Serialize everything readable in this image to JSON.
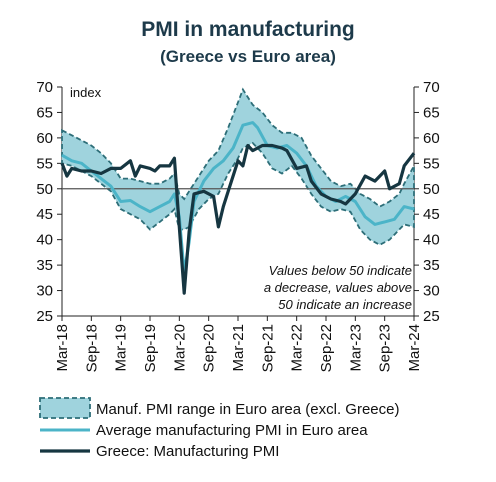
{
  "chart_data": {
    "type": "line",
    "title": "PMI in manufacturing",
    "subtitle": "(Greece vs Euro area)",
    "unit_label": "index",
    "ylim": [
      25,
      70
    ],
    "yticks": [
      25,
      30,
      35,
      40,
      45,
      50,
      55,
      60,
      65,
      70
    ],
    "x_start": "2018-03",
    "x_end": "2024-03",
    "x_tick_labels": [
      "Mar-18",
      "Sep-18",
      "Mar-19",
      "Sep-19",
      "Mar-20",
      "Sep-20",
      "Mar-21",
      "Sep-21",
      "Mar-22",
      "Sep-22",
      "Mar-23",
      "Sep-23",
      "Mar-24"
    ],
    "reference_line": 50,
    "annotation": [
      "Values below 50 indicate",
      "a decrease, values above",
      "50 indicate an increase"
    ],
    "legend": {
      "range": "Manuf. PMI range in Euro area (excl. Greece)",
      "average": "Average manufacturing PMI in Euro area",
      "greece": "Greece: Manufacturing PMI"
    },
    "colors": {
      "range_fill": "#9fd3dd",
      "range_border": "#2d6e78",
      "average": "#4bb4c8",
      "greece": "#163641",
      "reference": "#555555"
    },
    "series": [
      {
        "name": "Manuf. PMI range in Euro area (excl. Greece)",
        "points": [
          [
            "2018-03",
            55.0,
            61.5
          ],
          [
            "2018-05",
            54.5,
            60.5
          ],
          [
            "2018-07",
            53.5,
            59.5
          ],
          [
            "2018-09",
            52.5,
            58.5
          ],
          [
            "2018-11",
            51.0,
            57.0
          ],
          [
            "2019-01",
            49.5,
            55.0
          ],
          [
            "2019-03",
            46.0,
            52.0
          ],
          [
            "2019-05",
            45.0,
            52.0
          ],
          [
            "2019-07",
            44.0,
            51.5
          ],
          [
            "2019-09",
            42.0,
            51.0
          ],
          [
            "2019-11",
            43.5,
            51.0
          ],
          [
            "2020-01",
            45.0,
            52.0
          ],
          [
            "2020-02",
            46.0,
            53.0
          ],
          [
            "2020-03",
            42.0,
            49.0
          ],
          [
            "2020-04",
            42.0,
            48.0
          ],
          [
            "2020-05",
            42.5,
            49.5
          ],
          [
            "2020-07",
            46.0,
            52.5
          ],
          [
            "2020-09",
            48.0,
            55.5
          ],
          [
            "2020-11",
            49.0,
            57.5
          ],
          [
            "2021-01",
            53.0,
            62.0
          ],
          [
            "2021-03",
            56.0,
            67.0
          ],
          [
            "2021-04",
            58.0,
            69.5
          ],
          [
            "2021-06",
            59.0,
            66.5
          ],
          [
            "2021-08",
            57.0,
            65.0
          ],
          [
            "2021-10",
            54.0,
            62.5
          ],
          [
            "2021-12",
            53.0,
            61.0
          ],
          [
            "2022-02",
            54.5,
            61.0
          ],
          [
            "2022-04",
            52.0,
            60.0
          ],
          [
            "2022-06",
            49.0,
            56.5
          ],
          [
            "2022-08",
            46.5,
            54.0
          ],
          [
            "2022-10",
            45.5,
            51.5
          ],
          [
            "2022-12",
            46.0,
            50.5
          ],
          [
            "2023-02",
            45.5,
            51.0
          ],
          [
            "2023-04",
            42.0,
            49.0
          ],
          [
            "2023-06",
            40.0,
            48.0
          ],
          [
            "2023-08",
            39.0,
            46.5
          ],
          [
            "2023-10",
            40.0,
            47.5
          ],
          [
            "2023-12",
            42.0,
            49.0
          ],
          [
            "2024-01",
            43.0,
            51.0
          ],
          [
            "2024-03",
            42.5,
            54.5
          ]
        ]
      },
      {
        "name": "Average manufacturing PMI in Euro area",
        "points": [
          [
            "2018-03",
            56.6
          ],
          [
            "2018-05",
            55.5
          ],
          [
            "2018-07",
            55.0
          ],
          [
            "2018-09",
            53.5
          ],
          [
            "2018-11",
            52.0
          ],
          [
            "2019-01",
            50.5
          ],
          [
            "2019-03",
            47.5
          ],
          [
            "2019-05",
            47.7
          ],
          [
            "2019-07",
            46.5
          ],
          [
            "2019-09",
            45.5
          ],
          [
            "2019-11",
            46.5
          ],
          [
            "2020-01",
            47.5
          ],
          [
            "2020-02",
            49.0
          ],
          [
            "2020-03",
            44.5
          ],
          [
            "2020-04",
            33.5
          ],
          [
            "2020-05",
            39.5
          ],
          [
            "2020-06",
            47.5
          ],
          [
            "2020-08",
            51.5
          ],
          [
            "2020-10",
            54.0
          ],
          [
            "2020-12",
            55.5
          ],
          [
            "2021-02",
            58.0
          ],
          [
            "2021-04",
            62.5
          ],
          [
            "2021-06",
            63.0
          ],
          [
            "2021-07",
            62.0
          ],
          [
            "2021-09",
            58.5
          ],
          [
            "2021-11",
            58.0
          ],
          [
            "2022-01",
            58.5
          ],
          [
            "2022-03",
            57.0
          ],
          [
            "2022-05",
            54.5
          ],
          [
            "2022-07",
            50.5
          ],
          [
            "2022-09",
            48.5
          ],
          [
            "2022-11",
            47.5
          ],
          [
            "2023-01",
            48.5
          ],
          [
            "2023-03",
            47.5
          ],
          [
            "2023-05",
            44.5
          ],
          [
            "2023-07",
            43.0
          ],
          [
            "2023-09",
            43.5
          ],
          [
            "2023-11",
            44.0
          ],
          [
            "2024-01",
            46.5
          ],
          [
            "2024-03",
            46.0
          ]
        ]
      },
      {
        "name": "Greece: Manufacturing PMI",
        "points": [
          [
            "2018-03",
            55.0
          ],
          [
            "2018-04",
            52.5
          ],
          [
            "2018-05",
            54.0
          ],
          [
            "2018-07",
            53.5
          ],
          [
            "2018-09",
            53.5
          ],
          [
            "2018-11",
            53.0
          ],
          [
            "2019-01",
            54.0
          ],
          [
            "2019-03",
            54.0
          ],
          [
            "2019-05",
            55.5
          ],
          [
            "2019-06",
            52.5
          ],
          [
            "2019-07",
            54.5
          ],
          [
            "2019-09",
            54.0
          ],
          [
            "2019-10",
            53.5
          ],
          [
            "2019-11",
            54.5
          ],
          [
            "2020-01",
            54.5
          ],
          [
            "2020-02",
            56.0
          ],
          [
            "2020-03",
            42.5
          ],
          [
            "2020-04",
            29.5
          ],
          [
            "2020-05",
            41.5
          ],
          [
            "2020-06",
            49.0
          ],
          [
            "2020-08",
            49.5
          ],
          [
            "2020-10",
            48.5
          ],
          [
            "2020-11",
            42.5
          ],
          [
            "2020-12",
            46.5
          ],
          [
            "2021-01",
            49.5
          ],
          [
            "2021-03",
            55.5
          ],
          [
            "2021-04",
            54.5
          ],
          [
            "2021-05",
            58.5
          ],
          [
            "2021-06",
            57.5
          ],
          [
            "2021-08",
            58.5
          ],
          [
            "2021-10",
            58.5
          ],
          [
            "2021-12",
            58.0
          ],
          [
            "2022-01",
            57.5
          ],
          [
            "2022-03",
            54.0
          ],
          [
            "2022-05",
            54.5
          ],
          [
            "2022-06",
            51.5
          ],
          [
            "2022-08",
            49.0
          ],
          [
            "2022-10",
            48.0
          ],
          [
            "2022-12",
            47.5
          ],
          [
            "2023-01",
            47.0
          ],
          [
            "2023-03",
            49.0
          ],
          [
            "2023-05",
            52.5
          ],
          [
            "2023-07",
            51.5
          ],
          [
            "2023-09",
            53.5
          ],
          [
            "2023-10",
            50.0
          ],
          [
            "2023-12",
            51.0
          ],
          [
            "2024-01",
            54.5
          ],
          [
            "2024-03",
            57.0
          ]
        ]
      }
    ]
  }
}
